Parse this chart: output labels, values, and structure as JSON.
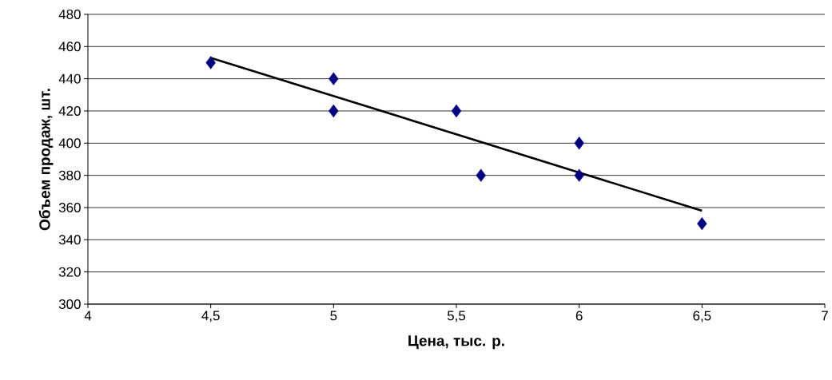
{
  "chart_data": {
    "type": "scatter",
    "xlabel": "Цена, тыс. р.",
    "ylabel": "Объем продаж, шт.",
    "series": [
      {
        "color": "#000080",
        "marker": "diamond",
        "x": [
          4.5,
          5,
          5,
          5.5,
          5.6,
          6,
          6,
          6.5
        ],
        "values": [
          450,
          440,
          420,
          420,
          380,
          400,
          380,
          350
        ]
      },
      {
        "type": "line",
        "color": "#000000",
        "marker": "none",
        "x": [
          4.5,
          6.5
        ],
        "values": [
          453,
          358
        ]
      }
    ],
    "xlim": [
      4,
      7
    ],
    "ylim": [
      300,
      480
    ],
    "xticks": [
      4,
      {
        "value": 4.5,
        "label": "4,5"
      },
      5,
      {
        "value": 5.5,
        "label": "5,5"
      },
      6,
      {
        "value": 6.5,
        "label": "6,5"
      },
      7
    ],
    "yticks": [
      300,
      320,
      340,
      360,
      380,
      400,
      420,
      440,
      460,
      480
    ],
    "grid": "y"
  }
}
